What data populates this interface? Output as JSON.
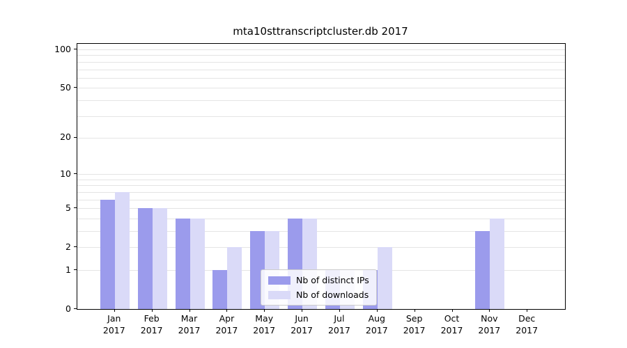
{
  "title": "mta10sttranscriptcluster.db 2017",
  "chart_data": {
    "type": "bar",
    "title": "mta10sttranscriptcluster.db 2017",
    "yscale": "log1p",
    "ylim": [
      0,
      108
    ],
    "grid": true,
    "legend_position": "lower center",
    "categories": [
      {
        "month": "Jan",
        "year": "2017"
      },
      {
        "month": "Feb",
        "year": "2017"
      },
      {
        "month": "Mar",
        "year": "2017"
      },
      {
        "month": "Apr",
        "year": "2017"
      },
      {
        "month": "May",
        "year": "2017"
      },
      {
        "month": "Jun",
        "year": "2017"
      },
      {
        "month": "Jul",
        "year": "2017"
      },
      {
        "month": "Aug",
        "year": "2017"
      },
      {
        "month": "Sep",
        "year": "2017"
      },
      {
        "month": "Oct",
        "year": "2017"
      },
      {
        "month": "Nov",
        "year": "2017"
      },
      {
        "month": "Dec",
        "year": "2017"
      }
    ],
    "series": [
      {
        "name": "Nb of distinct IPs",
        "color": "#9b9bec",
        "values": [
          6,
          5,
          4,
          1,
          3,
          4,
          1,
          1,
          0,
          0,
          3,
          0
        ]
      },
      {
        "name": "Nb of downloads",
        "color": "#dadaf8",
        "values": [
          7,
          5,
          4,
          2,
          3,
          4,
          1,
          2,
          0,
          0,
          4,
          0
        ]
      }
    ],
    "yticks": [
      0,
      1,
      2,
      5,
      10,
      20,
      50,
      100
    ],
    "grid_values": [
      1,
      2,
      3,
      4,
      5,
      6,
      7,
      8,
      9,
      10,
      20,
      30,
      40,
      50,
      60,
      70,
      80,
      90,
      100
    ]
  }
}
